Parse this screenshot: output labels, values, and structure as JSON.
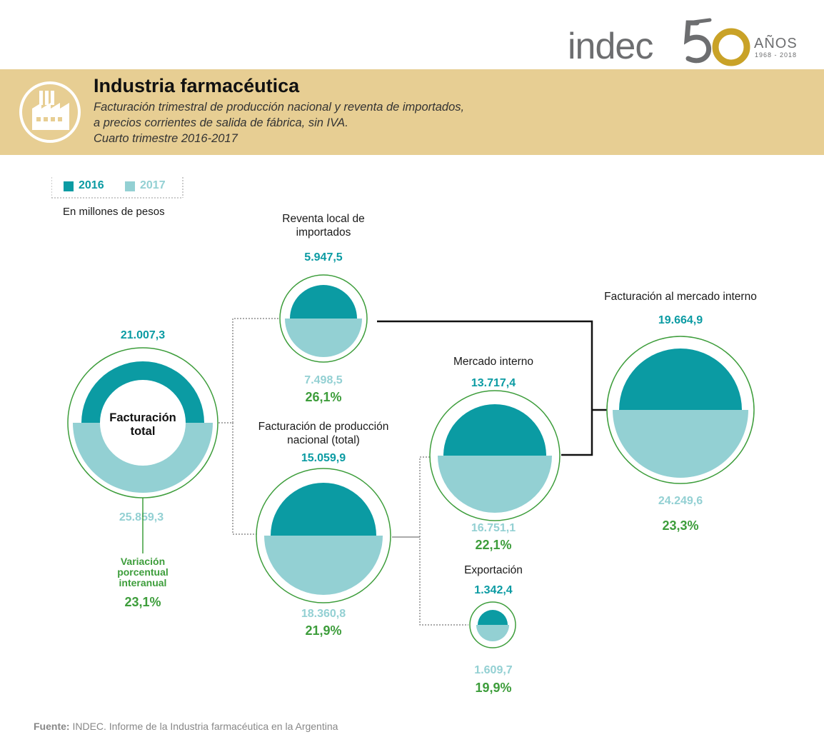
{
  "logo": {
    "brand": "indec",
    "anniversary_number": "50",
    "anos": "AÑOS",
    "years": "1968 - 2018"
  },
  "header": {
    "title": "Industria farmacéutica",
    "subtitle_lines": [
      "Facturación trimestral de producción nacional y reventa de importados,",
      "a precios corrientes de salida de fábrica, sin IVA.",
      "Cuarto trimestre 2016-2017"
    ],
    "icon": "factory-icon"
  },
  "legend": {
    "items": [
      {
        "label": "2016",
        "color": "#0b9ba3"
      },
      {
        "label": "2017",
        "color": "#93d0d3"
      }
    ],
    "unit": "En millones de pesos"
  },
  "colors": {
    "y2016": "#0b9ba3",
    "y2017": "#93d0d3",
    "ring": "#3d9d3b",
    "header_bg": "#e7ce93",
    "variation": "#3d9d3b"
  },
  "nodes": {
    "total": {
      "label_lines": [
        "Facturación",
        "total"
      ],
      "value_2016": "21.007,3",
      "value_2017": "25.859,3",
      "variation_label_lines": [
        "Variación",
        "porcentual",
        "interanual"
      ],
      "variation": "23,1%"
    },
    "reventa": {
      "label_lines": [
        "Reventa local de",
        "importados"
      ],
      "value_2016": "5.947,5",
      "value_2017": "7.498,5",
      "variation": "26,1%"
    },
    "produccion": {
      "label_lines": [
        "Facturación de producción",
        "nacional (total)"
      ],
      "value_2016": "15.059,9",
      "value_2017": "18.360,8",
      "variation": "21,9%"
    },
    "mercado_interno": {
      "label_lines": [
        "Mercado interno"
      ],
      "value_2016": "13.717,4",
      "value_2017": "16.751,1",
      "variation": "22,1%"
    },
    "exportacion": {
      "label_lines": [
        "Exportación"
      ],
      "value_2016": "1.342,4",
      "value_2017": "1.609,7",
      "variation": "19,9%"
    },
    "facturacion_mercado_interno": {
      "label_lines": [
        "Facturación al mercado interno"
      ],
      "value_2016": "19.664,9",
      "value_2017": "24.249,6",
      "variation": "23,3%"
    }
  },
  "source": {
    "label": "Fuente:",
    "text": " INDEC. Informe de la Industria farmacéutica en la Argentina"
  }
}
